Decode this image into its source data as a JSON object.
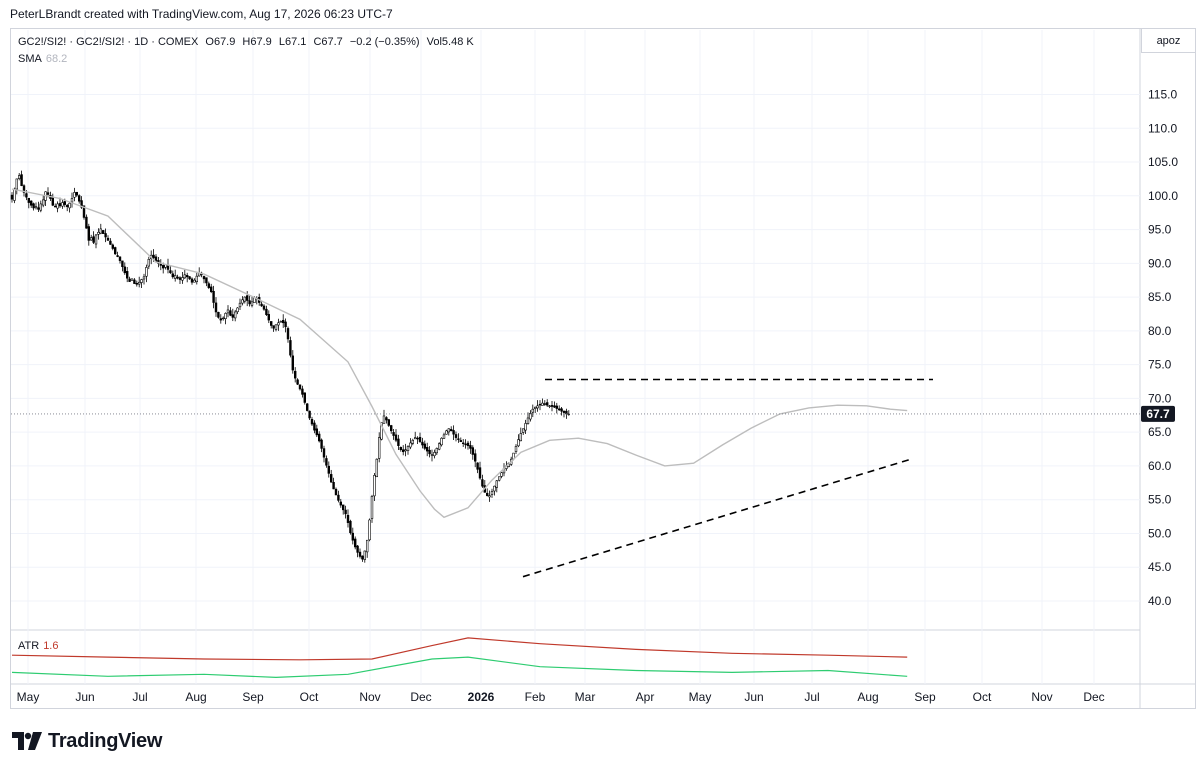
{
  "attribution": "PeterLBrandt created with TradingView.com, Aug 17, 2026 06:23 UTC-7",
  "header": {
    "symbol": "GC2!/SI2! · GC2!/SI2! · 1D · COMEX",
    "open": "O67.9",
    "high": "H67.9",
    "low": "L67.1",
    "close": "C67.7",
    "change": "−0.2 (−0.35%)",
    "volume": "Vol5.48 K"
  },
  "sma": {
    "label": "SMA",
    "value": "68.2"
  },
  "atr": {
    "label": "ATR",
    "value": "1.6"
  },
  "scale_button": "apoz",
  "last_price_label": "67.7",
  "brand": "TradingView",
  "colors": {
    "up_candle": "#ffffff",
    "down_candle": "#000000",
    "sma_line": "#bdbdbd",
    "atr_line": "#c0392b",
    "atr_slow_line": "#2ecc71",
    "trendline": "#000000",
    "last_price_box": "#131722"
  },
  "chart_data": {
    "type": "candlestick",
    "ylim": [
      36,
      121
    ],
    "y_ticks": [
      "40.0",
      "45.0",
      "50.0",
      "55.0",
      "60.0",
      "65.0",
      "70.0",
      "75.0",
      "80.0",
      "85.0",
      "90.0",
      "95.0",
      "100.0",
      "105.0",
      "110.0",
      "115.0"
    ],
    "x_ticks": [
      "May",
      "Jun",
      "Jul",
      "Aug",
      "Sep",
      "Oct",
      "Nov",
      "Dec",
      "2026",
      "Feb",
      "Mar",
      "Apr",
      "May",
      "Jun",
      "Jul",
      "Aug",
      "Sep",
      "Oct",
      "Nov",
      "Dec"
    ],
    "bold_x_ticks": [
      "2026"
    ],
    "last_price": 67.7,
    "closes": [
      99.5,
      101.0,
      102.5,
      103.0,
      101.5,
      100.5,
      99.8,
      99.0,
      98.6,
      98.2,
      98.4,
      98.0,
      98.8,
      99.4,
      100.6,
      100.2,
      99.6,
      98.6,
      98.4,
      98.8,
      98.5,
      99.0,
      98.7,
      98.4,
      98.9,
      99.6,
      100.5,
      100.1,
      99.2,
      98.3,
      96.8,
      95.2,
      93.4,
      93.8,
      93.1,
      94.2,
      94.6,
      95.1,
      94.4,
      93.9,
      93.4,
      92.8,
      92.2,
      91.4,
      91.0,
      90.4,
      89.5,
      88.6,
      87.8,
      87.3,
      87.7,
      87.0,
      86.9,
      87.2,
      87.6,
      88.0,
      89.4,
      90.6,
      91.2,
      90.8,
      90.2,
      90.0,
      89.7,
      89.3,
      89.8,
      89.1,
      88.6,
      88.0,
      88.2,
      87.8,
      87.6,
      87.9,
      88.3,
      88.0,
      87.7,
      87.2,
      87.5,
      88.1,
      88.6,
      88.3,
      87.7,
      87.1,
      86.4,
      85.8,
      84.2,
      82.8,
      82.0,
      81.6,
      81.9,
      82.6,
      83.1,
      82.3,
      82.0,
      82.8,
      83.4,
      84.1,
      84.6,
      85.0,
      84.5,
      84.0,
      84.3,
      84.9,
      84.8,
      84.2,
      83.7,
      83.2,
      82.4,
      81.6,
      80.8,
      80.4,
      80.9,
      81.2,
      81.4,
      81.2,
      80.6,
      78.8,
      76.4,
      74.2,
      73.0,
      72.1,
      71.4,
      70.6,
      69.4,
      68.2,
      67.1,
      66.2,
      65.3,
      64.6,
      63.7,
      62.6,
      61.3,
      60.1,
      58.9,
      57.6,
      56.6,
      55.7,
      54.9,
      54.2,
      53.5,
      52.9,
      51.6,
      50.1,
      49.0,
      48.0,
      47.2,
      46.6,
      46.2,
      47.4,
      49.0,
      52.0,
      55.5,
      58.6,
      61.0,
      64.2,
      66.4,
      67.4,
      66.8,
      66.0,
      65.2,
      64.5,
      63.8,
      63.0,
      62.4,
      62.1,
      62.4,
      62.9,
      63.4,
      63.8,
      64.2,
      64.0,
      63.6,
      63.1,
      62.6,
      62.2,
      61.8,
      61.7,
      62.0,
      62.6,
      63.3,
      64.1,
      64.6,
      65.2,
      65.5,
      65.2,
      64.7,
      64.2,
      63.9,
      63.6,
      63.4,
      63.2,
      63.0,
      62.6,
      61.7,
      60.7,
      59.5,
      58.2,
      57.0,
      56.1,
      55.6,
      55.6,
      56.2,
      57.0,
      57.8,
      58.4,
      59.0,
      59.6,
      60.0,
      60.4,
      61.0,
      61.9,
      62.9,
      63.9,
      64.8,
      65.5,
      66.3,
      67.1,
      67.8,
      68.4,
      68.7,
      68.9,
      69.1,
      69.3,
      69.2,
      69.0,
      68.9,
      68.8,
      68.7,
      68.5,
      68.3,
      68.1,
      67.9,
      67.7,
      67.7
    ],
    "sma": {
      "name": "SMA",
      "points": [
        [
          0,
          101.0
        ],
        [
          20,
          99.6
        ],
        [
          40,
          97.0
        ],
        [
          60,
          90.2
        ],
        [
          80,
          88.4
        ],
        [
          100,
          85.1
        ],
        [
          120,
          81.7
        ],
        [
          140,
          75.4
        ],
        [
          150,
          68.8
        ],
        [
          160,
          61.7
        ],
        [
          170,
          56.3
        ],
        [
          176,
          53.6
        ],
        [
          180,
          52.4
        ],
        [
          190,
          53.8
        ],
        [
          200,
          57.9
        ],
        [
          212,
          62.0
        ],
        [
          224,
          63.8
        ],
        [
          236,
          64.1
        ],
        [
          248,
          63.3
        ],
        [
          260,
          61.6
        ],
        [
          272,
          60.0
        ],
        [
          284,
          60.4
        ],
        [
          296,
          63.1
        ],
        [
          308,
          65.6
        ],
        [
          320,
          67.7
        ],
        [
          332,
          68.6
        ],
        [
          344,
          69.0
        ],
        [
          356,
          68.9
        ],
        [
          366,
          68.4
        ],
        [
          373,
          68.2
        ]
      ]
    },
    "atr": {
      "name": "ATR",
      "fast": [
        [
          0,
          1.0
        ],
        [
          40,
          0.95
        ],
        [
          80,
          0.9
        ],
        [
          120,
          0.88
        ],
        [
          150,
          0.9
        ],
        [
          175,
          1.25
        ],
        [
          190,
          1.45
        ],
        [
          220,
          1.3
        ],
        [
          260,
          1.15
        ],
        [
          300,
          1.05
        ],
        [
          340,
          1.0
        ],
        [
          373,
          0.95
        ]
      ],
      "slow": [
        [
          0,
          0.55
        ],
        [
          40,
          0.45
        ],
        [
          80,
          0.5
        ],
        [
          110,
          0.42
        ],
        [
          140,
          0.5
        ],
        [
          175,
          0.9
        ],
        [
          190,
          0.95
        ],
        [
          220,
          0.7
        ],
        [
          260,
          0.6
        ],
        [
          300,
          0.55
        ],
        [
          340,
          0.6
        ],
        [
          373,
          0.45
        ]
      ]
    },
    "trendlines": [
      {
        "style": "dashed",
        "points": [
          [
            47.8,
            72.8
          ],
          [
            126.8,
            72.8
          ]
        ]
      },
      {
        "style": "dashed",
        "points": [
          [
            46.5,
            43.6
          ],
          [
            129.5,
            61.0
          ]
        ]
      }
    ]
  }
}
